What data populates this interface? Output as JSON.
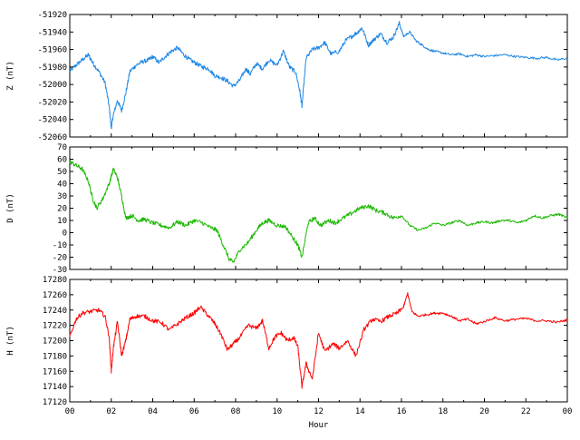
{
  "xaxis": {
    "label": "Hour",
    "range": [
      0,
      24
    ],
    "ticks": [
      "00",
      "02",
      "04",
      "06",
      "08",
      "10",
      "12",
      "14",
      "16",
      "18",
      "20",
      "22",
      "00"
    ]
  },
  "chart_data": [
    {
      "type": "line",
      "ylabel": "Z (nT)",
      "ylim": [
        -52060,
        -51920
      ],
      "yticks": [
        -52060,
        -52040,
        -52020,
        -52000,
        -51980,
        -51960,
        -51940,
        -51920
      ],
      "series": [
        {
          "color": "#1e88e5",
          "x": [
            0,
            0.3,
            0.6,
            0.9,
            1.1,
            1.4,
            1.7,
            1.9,
            2.0,
            2.1,
            2.3,
            2.5,
            2.7,
            2.9,
            3.2,
            3.5,
            3.8,
            4.0,
            4.3,
            4.6,
            4.9,
            5.2,
            5.5,
            5.8,
            6.1,
            6.4,
            6.7,
            7.0,
            7.3,
            7.6,
            7.9,
            8.2,
            8.5,
            8.7,
            9.0,
            9.3,
            9.6,
            10.0,
            10.3,
            10.6,
            10.9,
            11.1,
            11.2,
            11.4,
            11.7,
            12.0,
            12.3,
            12.6,
            13.0,
            13.3,
            13.6,
            13.9,
            14.1,
            14.4,
            14.7,
            15.0,
            15.3,
            15.6,
            15.9,
            16.1,
            16.4,
            16.7,
            17.0,
            17.3,
            17.6,
            18.0,
            18.4,
            18.8,
            19.2,
            19.6,
            20.0,
            20.5,
            21.0,
            21.5,
            22.0,
            22.5,
            23.0,
            23.5,
            24.0
          ],
          "values": [
            -51985,
            -51978,
            -51972,
            -51966,
            -51975,
            -51985,
            -51998,
            -52025,
            -52050,
            -52035,
            -52018,
            -52030,
            -52010,
            -51985,
            -51978,
            -51974,
            -51972,
            -51968,
            -51975,
            -51968,
            -51962,
            -51958,
            -51966,
            -51972,
            -51976,
            -51980,
            -51982,
            -51990,
            -51992,
            -51996,
            -52002,
            -51995,
            -51982,
            -51988,
            -51976,
            -51982,
            -51972,
            -51978,
            -51962,
            -51980,
            -51986,
            -52008,
            -52025,
            -51970,
            -51960,
            -51958,
            -51952,
            -51965,
            -51962,
            -51950,
            -51945,
            -51940,
            -51935,
            -51955,
            -51948,
            -51942,
            -51952,
            -51946,
            -51930,
            -51945,
            -51940,
            -51950,
            -51955,
            -51960,
            -51962,
            -51964,
            -51966,
            -51965,
            -51968,
            -51966,
            -51968,
            -51967,
            -51966,
            -51968,
            -51969,
            -51970,
            -51969,
            -51972,
            -51970
          ]
        }
      ]
    },
    {
      "type": "line",
      "ylabel": "D (nT)",
      "ylim": [
        -30,
        70
      ],
      "yticks": [
        -30,
        -20,
        -10,
        0,
        10,
        20,
        30,
        40,
        50,
        60,
        70
      ],
      "series": [
        {
          "color": "#1ab800",
          "x": [
            0,
            0.3,
            0.6,
            0.9,
            1.1,
            1.3,
            1.6,
            1.9,
            2.1,
            2.3,
            2.5,
            2.7,
            3.0,
            3.3,
            3.6,
            4.0,
            4.4,
            4.8,
            5.2,
            5.6,
            6.0,
            6.4,
            6.8,
            7.1,
            7.4,
            7.7,
            7.9,
            8.2,
            8.6,
            9.0,
            9.3,
            9.6,
            10.0,
            10.4,
            10.8,
            11.0,
            11.2,
            11.5,
            11.8,
            12.1,
            12.5,
            12.8,
            13.2,
            13.6,
            14.0,
            14.4,
            14.8,
            15.2,
            15.6,
            16.0,
            16.4,
            16.8,
            17.2,
            17.6,
            18.0,
            18.4,
            18.8,
            19.2,
            19.6,
            20.0,
            20.4,
            20.8,
            21.2,
            21.6,
            22.0,
            22.4,
            22.8,
            23.2,
            23.6,
            24.0
          ],
          "values": [
            58,
            55,
            52,
            42,
            28,
            20,
            28,
            40,
            52,
            45,
            30,
            12,
            14,
            10,
            11,
            8,
            6,
            4,
            9,
            6,
            10,
            8,
            4,
            2,
            -10,
            -22,
            -24,
            -14,
            -8,
            2,
            8,
            10,
            6,
            5,
            -5,
            -10,
            -20,
            8,
            12,
            6,
            10,
            8,
            12,
            16,
            20,
            22,
            18,
            16,
            12,
            14,
            6,
            2,
            4,
            8,
            6,
            8,
            10,
            6,
            8,
            9,
            8,
            10,
            10,
            8,
            10,
            14,
            12,
            14,
            15,
            12
          ]
        }
      ]
    },
    {
      "type": "line",
      "ylabel": "H (nT)",
      "ylim": [
        17120,
        17280
      ],
      "yticks": [
        17120,
        17140,
        17160,
        17180,
        17200,
        17220,
        17240,
        17260,
        17280
      ],
      "series": [
        {
          "color": "#ff0000",
          "x": [
            0,
            0.3,
            0.6,
            1.0,
            1.4,
            1.7,
            1.9,
            2.0,
            2.1,
            2.3,
            2.5,
            2.7,
            2.9,
            3.2,
            3.6,
            4.0,
            4.4,
            4.8,
            5.2,
            5.6,
            6.0,
            6.3,
            6.7,
            7.0,
            7.3,
            7.6,
            7.9,
            8.2,
            8.6,
            9.0,
            9.3,
            9.6,
            9.9,
            10.2,
            10.5,
            10.8,
            11.0,
            11.2,
            11.4,
            11.7,
            12.0,
            12.3,
            12.7,
            13.0,
            13.4,
            13.8,
            14.2,
            14.6,
            15.0,
            15.4,
            15.8,
            16.1,
            16.3,
            16.5,
            16.8,
            17.2,
            17.6,
            18.0,
            18.4,
            18.8,
            19.2,
            19.6,
            20.0,
            20.5,
            21.0,
            21.5,
            22.0,
            22.5,
            23.0,
            23.5,
            24.0
          ],
          "values": [
            17205,
            17228,
            17236,
            17238,
            17240,
            17232,
            17205,
            17160,
            17190,
            17225,
            17180,
            17200,
            17228,
            17232,
            17232,
            17226,
            17224,
            17214,
            17222,
            17230,
            17236,
            17244,
            17232,
            17222,
            17208,
            17188,
            17196,
            17204,
            17220,
            17216,
            17226,
            17190,
            17205,
            17210,
            17200,
            17204,
            17192,
            17140,
            17170,
            17150,
            17210,
            17186,
            17196,
            17190,
            17200,
            17180,
            17215,
            17228,
            17225,
            17232,
            17236,
            17244,
            17262,
            17238,
            17232,
            17234,
            17236,
            17236,
            17232,
            17226,
            17228,
            17222,
            17225,
            17230,
            17226,
            17228,
            17229,
            17226,
            17226,
            17224,
            17227
          ]
        }
      ]
    }
  ]
}
